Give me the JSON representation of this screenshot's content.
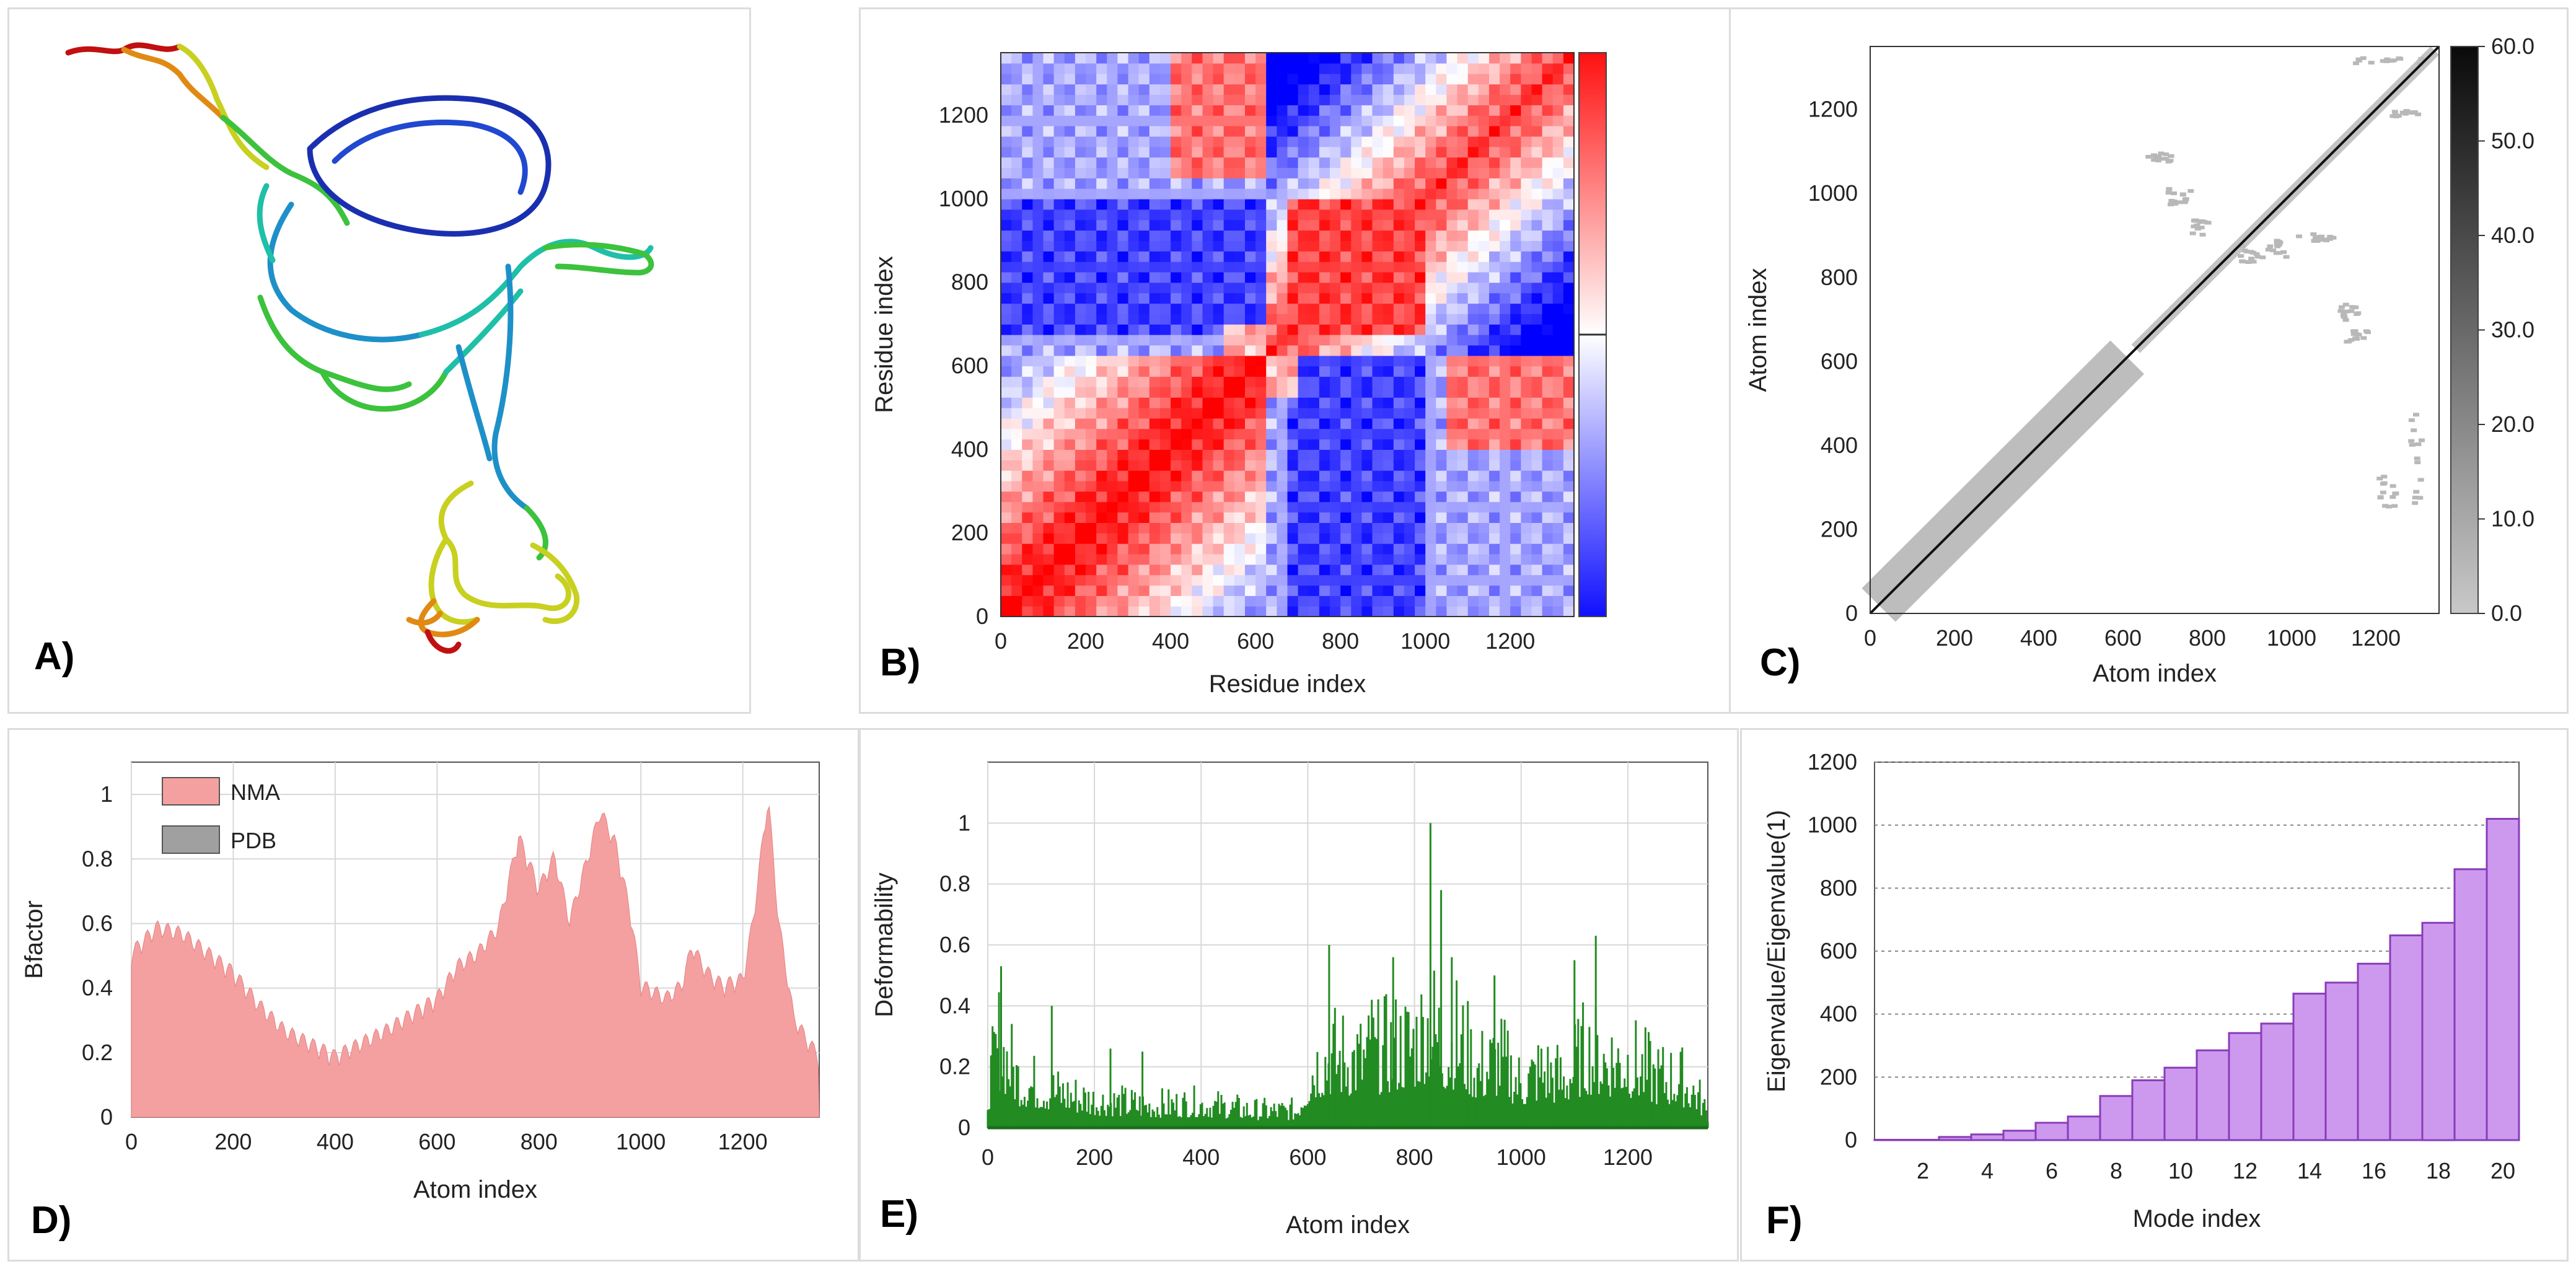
{
  "chart_data": [
    {
      "panel": "A)",
      "type": "other",
      "description_colors": [
        "#1a2fb0",
        "#1e90c8",
        "#1fbfa8",
        "#3cc23c",
        "#c8d020",
        "#e08a14",
        "#c01010"
      ]
    },
    {
      "panel": "B)",
      "type": "heatmap",
      "xlabel": "Residue index",
      "ylabel": "Residue index",
      "xlim": [
        0,
        1350
      ],
      "ylim": [
        0,
        1350
      ],
      "xticks": [
        0,
        200,
        400,
        600,
        800,
        1000,
        1200
      ],
      "yticks": [
        0,
        200,
        400,
        600,
        800,
        1000,
        1200
      ],
      "colorbar": {
        "low": "#1010ff",
        "mid": "#ffffff",
        "high": "#ff1010"
      }
    },
    {
      "panel": "C)",
      "type": "heatmap",
      "xlabel": "Atom index",
      "ylabel": "Atom index",
      "xlim": [
        0,
        1350
      ],
      "ylim": [
        0,
        1350
      ],
      "xticks": [
        0,
        200,
        400,
        600,
        800,
        1000,
        1200
      ],
      "yticks": [
        0,
        200,
        400,
        600,
        800,
        1000,
        1200
      ],
      "colorbar_ticks": [
        "0.0",
        "10.0",
        "20.0",
        "30.0",
        "40.0",
        "50.0",
        "60.0"
      ],
      "colorbar_range": [
        0,
        60
      ]
    },
    {
      "panel": "D)",
      "type": "area",
      "xlabel": "Atom index",
      "ylabel": "Bfactor",
      "xlim": [
        0,
        1350
      ],
      "ylim": [
        0,
        1.1
      ],
      "xticks": [
        0,
        200,
        400,
        600,
        800,
        1000,
        1200
      ],
      "yticks": [
        "0",
        "0.2",
        "0.4",
        "0.6",
        "0.8",
        "1"
      ],
      "legend": [
        {
          "name": "NMA",
          "color": "#f4a0a0"
        },
        {
          "name": "PDB",
          "color": "#a0a0a0"
        }
      ],
      "series": [
        {
          "name": "NMA",
          "x": [
            0,
            50,
            100,
            150,
            200,
            250,
            300,
            350,
            400,
            450,
            500,
            550,
            600,
            640,
            680,
            720,
            760,
            780,
            800,
            830,
            860,
            900,
            920,
            950,
            980,
            1000,
            1050,
            1080,
            1100,
            1130,
            1160,
            1200,
            1220,
            1240,
            1250,
            1270,
            1300,
            1330,
            1350
          ],
          "values": [
            0.5,
            0.58,
            0.56,
            0.5,
            0.44,
            0.34,
            0.26,
            0.22,
            0.18,
            0.22,
            0.26,
            0.31,
            0.36,
            0.46,
            0.5,
            0.58,
            0.86,
            0.78,
            0.7,
            0.8,
            0.6,
            0.82,
            0.94,
            0.84,
            0.62,
            0.4,
            0.36,
            0.4,
            0.52,
            0.44,
            0.4,
            0.42,
            0.6,
            0.86,
            0.98,
            0.6,
            0.3,
            0.22,
            0.18
          ]
        }
      ]
    },
    {
      "panel": "E)",
      "type": "bar",
      "xlabel": "Atom index",
      "ylabel": "Deformability",
      "xlim": [
        0,
        1350
      ],
      "ylim": [
        0,
        1.2
      ],
      "xticks": [
        0,
        200,
        400,
        600,
        800,
        1000,
        1200
      ],
      "yticks": [
        "0",
        "0.2",
        "0.4",
        "0.6",
        "0.8",
        "1"
      ],
      "color": "#228b22",
      "envelope": {
        "x": [
          0,
          20,
          60,
          120,
          200,
          300,
          400,
          500,
          580,
          610,
          640,
          700,
          760,
          800,
          830,
          860,
          880,
          920,
          960,
          1000,
          1040,
          1080,
          1120,
          1160,
          1200,
          1250,
          1300,
          1330,
          1350
        ],
        "values": [
          0.2,
          0.5,
          0.28,
          0.22,
          0.16,
          0.13,
          0.14,
          0.1,
          0.1,
          0.36,
          0.42,
          0.4,
          0.46,
          0.5,
          0.62,
          0.46,
          0.52,
          0.34,
          0.4,
          0.26,
          0.34,
          0.28,
          0.44,
          0.4,
          0.4,
          0.3,
          0.28,
          0.2,
          0.08
        ]
      },
      "peaks": [
        {
          "x": 25,
          "y": 0.53
        },
        {
          "x": 120,
          "y": 0.4
        },
        {
          "x": 230,
          "y": 0.26
        },
        {
          "x": 290,
          "y": 0.25
        },
        {
          "x": 640,
          "y": 0.6
        },
        {
          "x": 720,
          "y": 0.42
        },
        {
          "x": 760,
          "y": 0.56
        },
        {
          "x": 830,
          "y": 1.0
        },
        {
          "x": 850,
          "y": 0.78
        },
        {
          "x": 870,
          "y": 0.56
        },
        {
          "x": 950,
          "y": 0.5
        },
        {
          "x": 1100,
          "y": 0.55
        },
        {
          "x": 1140,
          "y": 0.63
        }
      ]
    },
    {
      "panel": "F)",
      "type": "bar",
      "xlabel": "Mode index",
      "ylabel": "Eigenvalue/Eigenvalue(1)",
      "ylim": [
        0,
        1200
      ],
      "yticks": [
        0,
        200,
        400,
        600,
        800,
        1000,
        1200
      ],
      "xticks": [
        2,
        4,
        6,
        8,
        10,
        12,
        14,
        16,
        18,
        20
      ],
      "categories": [
        1,
        2,
        3,
        4,
        5,
        6,
        7,
        8,
        9,
        10,
        11,
        12,
        13,
        14,
        15,
        16,
        17,
        18,
        19,
        20
      ],
      "values": [
        1,
        1,
        10,
        18,
        30,
        55,
        75,
        140,
        190,
        230,
        285,
        340,
        370,
        465,
        500,
        560,
        650,
        690,
        860,
        1020
      ],
      "color": "#cc99ee",
      "edge_color": "#8a3cb8"
    }
  ]
}
